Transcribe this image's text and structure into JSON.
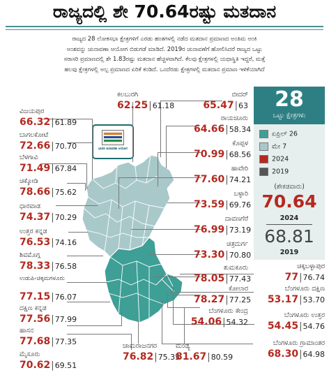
{
  "title": "ರಾಜ್ಯದಲ್ಲಿ ಶೇ 70.64ರಷ್ಟು ಮತದಾನ",
  "intro": [
    "ರಾಜ್ಯದ 28 ಲೋಕಸಭಾ ಕ್ಷೇತ್ರಗಳಿಗೆ ಎರಡು ಹಂತಗಳಲ್ಲಿ ನಡೆದ ಮತದಾನ ಪ್ರಮಾಣದ ಅಂತಿಮ ಅಂಕಿ",
    "ಅಂಶವನ್ನು ಚುನಾವಣಾ ಆಯೋಗ ಬಿಡುಗಡೆ ಮಾಡಿದೆ. 2019ರ ಚುನಾವಣೆಗೆ ಹೋಲಿಸಿದರೆ ರಾಜ್ಯದ ಒಟ್ಟು",
    "ಸರಾಸರಿ ಪ್ರಮಾಣದಲ್ಲಿ ಶೇ 1.83ರಷ್ಟು ಮತದಾನ ಹೆಚ್ಚಳವಾಗಿದೆ. ಕೆಲವು ಕ್ಷೇತ್ರಗಳಲ್ಲಿ ಯಥಾಸ್ಥಿತಿ ಇದ್ದರೆ, ಮತ್ತೆ",
    "ಹಲವು ಕ್ಷೇತ್ರಗಳಲ್ಲಿ ಅಲ್ಪ ಪ್ರಮಾಣದ ಏರಿಕೆ ಕಂಡಿದೆ. ಒಂದೆರಡು ಕ್ಷೇತ್ರಗಳಲ್ಲಿ ಮತದಾನ ಪ್ರಮಾಣ ಇಳಿಕೆಯಾಗಿದೆ"
  ],
  "constituencies": [
    {
      "name": "ವಿಜಯಪುರ",
      "v2024": "66.32",
      "v2019": "61.89"
    },
    {
      "name": "ಬಾಗಲಕೋಟೆ",
      "v2024": "72.66",
      "v2019": "70.70"
    },
    {
      "name": "ಬೆಳಗಾವಿ",
      "v2024": "71.49",
      "v2019": "67.84"
    },
    {
      "name": "ಚಿಕ್ಕೋಡಿ",
      "v2024": "78.66",
      "v2019": "75.62"
    },
    {
      "name": "ಧಾರವಾಡ",
      "v2024": "74.37",
      "v2019": "70.29"
    },
    {
      "name": "ಉತ್ತರ ಕನ್ನಡ",
      "v2024": "76.53",
      "v2019": "74.16"
    },
    {
      "name": "ಶಿವಮೊಗ್ಗ",
      "v2024": "78.33",
      "v2019": "76.58"
    },
    {
      "name": "ಉಡುಪಿ-ಚಿಕ್ಕಮಗಳೂರು",
      "v2024": "77.15",
      "v2019": "76.07"
    },
    {
      "name": "ದಕ್ಷಿಣ ಕನ್ನಡ",
      "v2024": "77.56",
      "v2019": "77.99"
    },
    {
      "name": "ಹಾಸನ",
      "v2024": "77.68",
      "v2019": "77.35"
    },
    {
      "name": "ಮೈಸೂರು",
      "v2024": "70.62",
      "v2019": "69.51"
    },
    {
      "name": "ಕಲಬುರಗಿ",
      "v2024": "62.25",
      "v2019": "61.18"
    },
    {
      "name": "ಬೀದರ್",
      "v2024": "65.47",
      "v2019": "63"
    },
    {
      "name": "ರಾಯಚೂರು",
      "v2024": "64.66",
      "v2019": "58.34"
    },
    {
      "name": "ಕೊಪ್ಪಳ",
      "v2024": "70.99",
      "v2019": "68.56"
    },
    {
      "name": "ಹಾವೇರಿ",
      "v2024": "77.60",
      "v2019": "74.21"
    },
    {
      "name": "ಬಳ್ಳಾರಿ",
      "v2024": "73.59",
      "v2019": "69.76"
    },
    {
      "name": "ದಾವಣಗೆರೆ",
      "v2024": "76.99",
      "v2019": "73.19"
    },
    {
      "name": "ಚಿತ್ರದುರ್ಗ",
      "v2024": "73.30",
      "v2019": "70.80"
    },
    {
      "name": "ತುಮಕೂರು",
      "v2024": "78.05",
      "v2019": "77.43"
    },
    {
      "name": "ಚಿಕ್ಕಬಳ್ಳಾಪುರ",
      "v2024": "77",
      "v2019": "76.74"
    },
    {
      "name": "ಕೋಲಾರ",
      "v2024": "78.27",
      "v2019": "77.25"
    },
    {
      "name": "ಬೆಂಗಳೂರು ದಕ್ಷಿಣ",
      "v2024": "53.17",
      "v2019": "53.70"
    },
    {
      "name": "ಬೆಂಗಳೂರು ಕೇಂದ್ರ",
      "v2024": "54.06",
      "v2019": "54.32"
    },
    {
      "name": "ಬೆಂಗಳೂರು ಉತ್ತರ",
      "v2024": "54.45",
      "v2019": "54.76"
    },
    {
      "name": "ಬೆಂಗಳೂರು ಗ್ರಾಮಾಂತರ",
      "v2024": "68.30",
      "v2019": "64.98"
    },
    {
      "name": "ಮಂಡ್ಯ",
      "v2024": "81.67",
      "v2019": "80.59"
    },
    {
      "name": "ಚಾಮರಾಜನಗರ",
      "v2024": "76.82",
      "v2019": "75.35"
    }
  ],
  "summary": {
    "count": "28",
    "count_label": "ಒಟ್ಟು ಕ್ಷೇತ್ರಗಳು",
    "legend": [
      {
        "label": "ಏಪ್ರಿಲ್ 26",
        "color": "#3e9f96"
      },
      {
        "label": "ಮೇ 7",
        "color": "#a9c8ca"
      },
      {
        "label": "2024",
        "color": "#b5291f"
      },
      {
        "label": "2019",
        "color": "#555555"
      }
    ],
    "unit": "(ಶೇಕಡವಾರು)",
    "value_2024": "70.64",
    "year_2024": "2024",
    "value_2019": "68.81",
    "year_2019": "2019"
  },
  "colors": {
    "phase1": "#3e9f96",
    "phase2": "#a9c8ca",
    "accent": "#2e7f84",
    "value2024": "#b5291f"
  },
  "emblem": {
    "text": "ಭಾರತ ಚುನಾವಣಾ ಆಯೋಗ"
  }
}
